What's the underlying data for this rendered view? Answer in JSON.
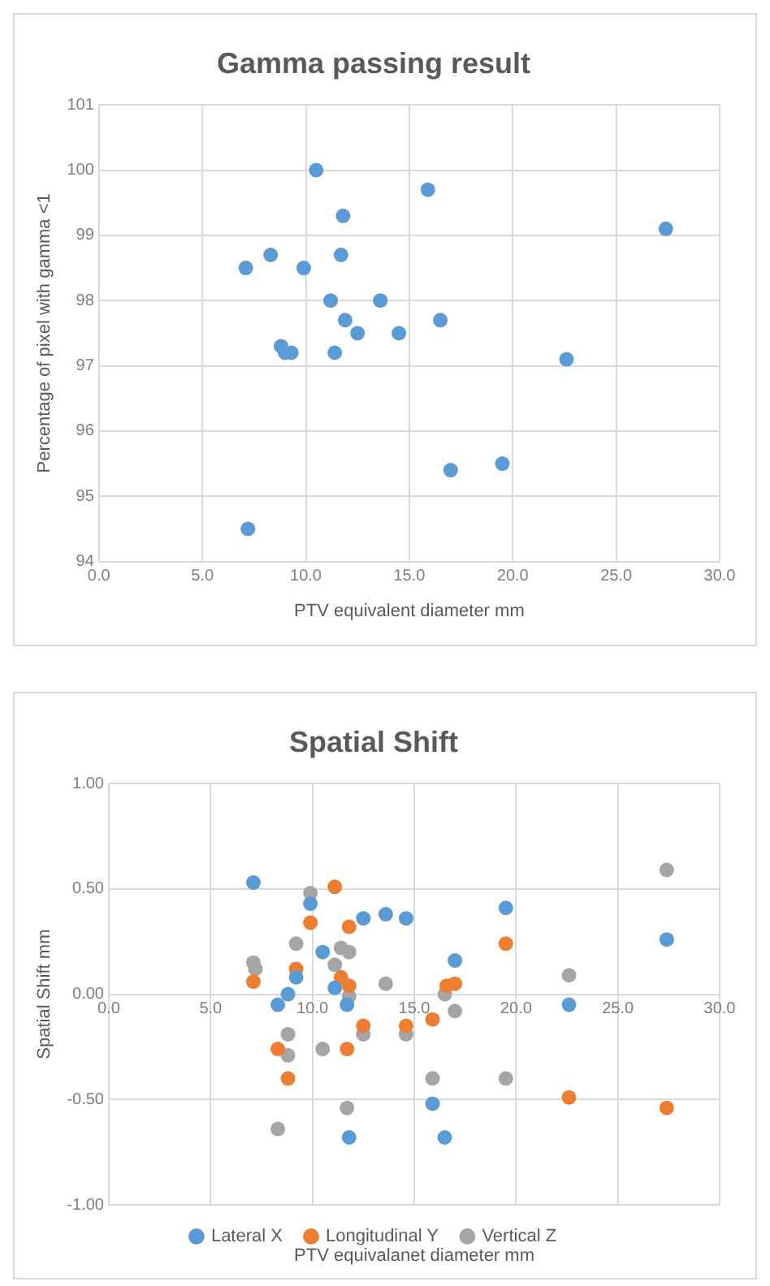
{
  "chart_data": [
    {
      "type": "scatter",
      "title": "Gamma passing result",
      "xlabel": "PTV equivalent diameter mm",
      "ylabel": "Percentage of pixel with gamma <1",
      "marker": "circle",
      "grid": true,
      "legend": false,
      "xlim": [
        0,
        30
      ],
      "xticks": [
        {
          "value": 0,
          "label": "0.0"
        },
        {
          "value": 5,
          "label": "5.0"
        },
        {
          "value": 10,
          "label": "10.0"
        },
        {
          "value": 15,
          "label": "15.0"
        },
        {
          "value": 20,
          "label": "20.0"
        },
        {
          "value": 25,
          "label": "25.0"
        },
        {
          "value": 30,
          "label": "30.0"
        }
      ],
      "ylim": [
        94,
        101
      ],
      "yticks": [
        94,
        95,
        96,
        97,
        98,
        99,
        100,
        101
      ],
      "series": [
        {
          "color": "#5b9bd5",
          "x": [
            7.1,
            7.2,
            8.3,
            8.8,
            9.0,
            9.3,
            9.9,
            10.5,
            11.2,
            11.4,
            11.7,
            11.8,
            11.9,
            12.5,
            13.6,
            14.5,
            15.9,
            16.5,
            17.0,
            19.5,
            22.6,
            27.4
          ],
          "values": [
            98.5,
            94.5,
            98.7,
            97.3,
            97.2,
            97.2,
            98.5,
            100.0,
            98.0,
            97.2,
            98.7,
            99.3,
            97.7,
            97.5,
            98.0,
            97.5,
            99.7,
            97.7,
            95.4,
            95.5,
            97.1,
            99.1
          ]
        }
      ]
    },
    {
      "type": "scatter",
      "title": "Spatial Shift",
      "xlabel": "PTV equivalanet diameter mm",
      "ylabel": "Spatial Shift mm",
      "marker": "circle",
      "grid": true,
      "legend": "bottom",
      "xlim": [
        0,
        30
      ],
      "xticks": [
        {
          "value": 0,
          "label": "0.0"
        },
        {
          "value": 5,
          "label": "5.0"
        },
        {
          "value": 10,
          "label": "10.0"
        },
        {
          "value": 15,
          "label": "15.0"
        },
        {
          "value": 20,
          "label": "20.0"
        },
        {
          "value": 25,
          "label": "25.0"
        },
        {
          "value": 30,
          "label": "30.0"
        }
      ],
      "ylim": [
        -1,
        1
      ],
      "yticks": [
        {
          "value": -1,
          "label": "-1.00"
        },
        {
          "value": -0.5,
          "label": "-0.50"
        },
        {
          "value": 0,
          "label": "0.00"
        },
        {
          "value": 0.5,
          "label": "0.50"
        },
        {
          "value": 1,
          "label": "1.00"
        }
      ],
      "series": [
        {
          "name": "Lateral X",
          "color": "#5b9bd5",
          "x": [
            7.1,
            9.9,
            10.5,
            12.5,
            13.6,
            14.6,
            19.5,
            27.4,
            17.0,
            9.2,
            8.3,
            8.8,
            11.1,
            11.7,
            22.6,
            15.9,
            11.8,
            16.5
          ],
          "values": [
            0.53,
            0.43,
            0.2,
            0.36,
            0.38,
            0.36,
            0.41,
            0.26,
            0.16,
            0.08,
            -0.05,
            0.0,
            0.03,
            -0.05,
            -0.05,
            -0.52,
            -0.68,
            -0.68
          ]
        },
        {
          "name": "Longitudinal Y",
          "color": "#ed7d31",
          "x": [
            7.1,
            9.2,
            9.9,
            11.1,
            11.8,
            11.4,
            11.8,
            19.5,
            16.6,
            17.0,
            12.5,
            14.6,
            15.9,
            8.3,
            11.7,
            8.8,
            22.6,
            27.4
          ],
          "values": [
            0.06,
            0.12,
            0.34,
            0.51,
            0.32,
            0.08,
            0.04,
            0.24,
            0.04,
            0.05,
            -0.15,
            -0.15,
            -0.12,
            -0.26,
            -0.26,
            -0.4,
            -0.49,
            -0.54
          ]
        },
        {
          "name": "Vertical Z",
          "color": "#a5a5a5",
          "x": [
            7.1,
            7.2,
            9.9,
            9.2,
            11.4,
            11.8,
            11.1,
            13.6,
            22.6,
            27.4,
            16.5,
            17.0,
            11.8,
            8.8,
            12.5,
            14.6,
            10.5,
            8.8,
            15.9,
            19.5,
            11.7,
            8.3
          ],
          "values": [
            0.15,
            0.12,
            0.48,
            0.24,
            0.22,
            0.2,
            0.14,
            0.05,
            0.09,
            0.59,
            0.0,
            -0.08,
            -0.01,
            -0.19,
            -0.19,
            -0.19,
            -0.26,
            -0.29,
            -0.4,
            -0.4,
            -0.54,
            -0.64
          ]
        }
      ]
    }
  ]
}
